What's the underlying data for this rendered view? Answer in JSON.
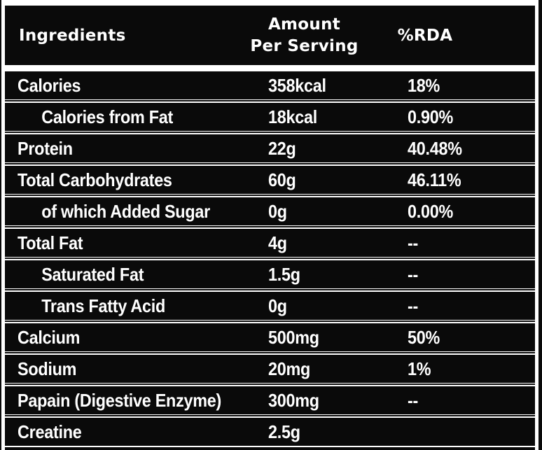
{
  "label": {
    "header": {
      "ingredients": "Ingredients",
      "amount_line1": "Amount",
      "amount_line2": "Per Serving",
      "rda": "%RDA"
    },
    "rows": [
      {
        "name": "Calories",
        "amount": "358kcal",
        "rda": "18%",
        "indent": false
      },
      {
        "name": "Calories from Fat",
        "amount": "18kcal",
        "rda": "0.90%",
        "indent": true
      },
      {
        "name": "Protein",
        "amount": "22g",
        "rda": "40.48%",
        "indent": false
      },
      {
        "name": "Total Carbohydrates",
        "amount": "60g",
        "rda": "46.11%",
        "indent": false
      },
      {
        "name": "of which Added Sugar",
        "amount": "0g",
        "rda": "0.00%",
        "indent": true
      },
      {
        "name": "Total Fat",
        "amount": "4g",
        "rda": "--",
        "indent": false
      },
      {
        "name": "Saturated Fat",
        "amount": "1.5g",
        "rda": "--",
        "indent": true
      },
      {
        "name": "Trans Fatty Acid",
        "amount": "0g",
        "rda": "--",
        "indent": true
      },
      {
        "name": "Calcium",
        "amount": "500mg",
        "rda": "50%",
        "indent": false
      },
      {
        "name": "Sodium",
        "amount": "20mg",
        "rda": "1%",
        "indent": false
      },
      {
        "name": "Papain (Digestive Enzyme)",
        "amount": "300mg",
        "rda": "--",
        "indent": false
      },
      {
        "name": "Creatine",
        "amount": "2.5g",
        "rda": "",
        "indent": false
      }
    ],
    "colors": {
      "row_bg": "#0a0a0a",
      "page_bg": "#ffffff",
      "text": "#ffffff",
      "separator": "#ffffff"
    }
  }
}
